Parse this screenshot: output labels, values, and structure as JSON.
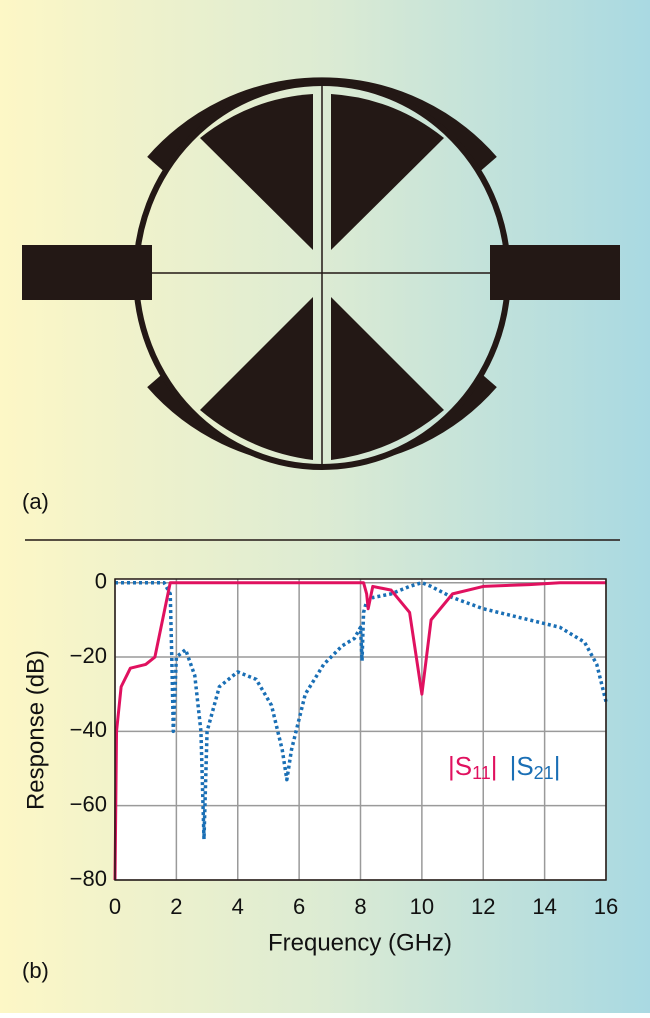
{
  "panel_labels": [
    "(a)",
    "(b)"
  ],
  "chart_data": {
    "type": "line",
    "x_label": "Frequency (GHz)",
    "y_label": "Response (dB)",
    "x": [
      0,
      0.05,
      0.2,
      0.5,
      1,
      1.3,
      1.6,
      1.8,
      1.85,
      1.9,
      2,
      2.3,
      2.6,
      2.8,
      2.9,
      3,
      3.4,
      4,
      4.6,
      5.1,
      5.45,
      5.6,
      5.75,
      6.2,
      6.8,
      7.4,
      7.8,
      8,
      8.05,
      8.1,
      8.2,
      8.25,
      8.4,
      9,
      9.6,
      10,
      10.3,
      11,
      12,
      13.5,
      14.5,
      15.3,
      15.7,
      16
    ],
    "series": [
      {
        "name": "|S11|",
        "color": "#e0115f",
        "style": "solid",
        "values": [
          -80,
          -40,
          -28,
          -23,
          -22,
          -20,
          -8,
          0,
          0,
          0,
          0,
          0,
          0,
          0,
          0,
          0,
          0,
          0,
          0,
          0,
          0,
          0,
          0,
          0,
          0,
          0,
          0,
          0,
          0,
          0,
          -3,
          -7,
          -1,
          -2,
          -8,
          -30,
          -10,
          -3,
          -1,
          -0.5,
          0,
          0,
          0,
          0
        ]
      },
      {
        "name": "|S21|",
        "color": "#1a6fb5",
        "style": "dotted",
        "values": [
          0,
          0,
          0,
          0,
          0,
          0,
          0,
          -3,
          -20,
          -40,
          -20,
          -18,
          -25,
          -40,
          -69,
          -40,
          -28,
          -24,
          -26,
          -33,
          -45,
          -53,
          -45,
          -30,
          -22,
          -17,
          -15,
          -12,
          -21,
          -8,
          -5,
          -5,
          -4,
          -3,
          -1,
          0,
          -1,
          -4,
          -7,
          -10,
          -12,
          -16,
          -22,
          -32
        ]
      }
    ],
    "xlim": [
      0,
      16
    ],
    "xticks": [
      0,
      2,
      4,
      6,
      8,
      10,
      12,
      14,
      16
    ],
    "ylim": [
      -80,
      1
    ],
    "yticks": [
      0,
      {
        "value": -20,
        "label": "−20"
      },
      {
        "value": -40,
        "label": "−40"
      },
      {
        "value": -60,
        "label": "−60"
      },
      {
        "value": -80,
        "label": "−80"
      }
    ],
    "grid": true
  }
}
